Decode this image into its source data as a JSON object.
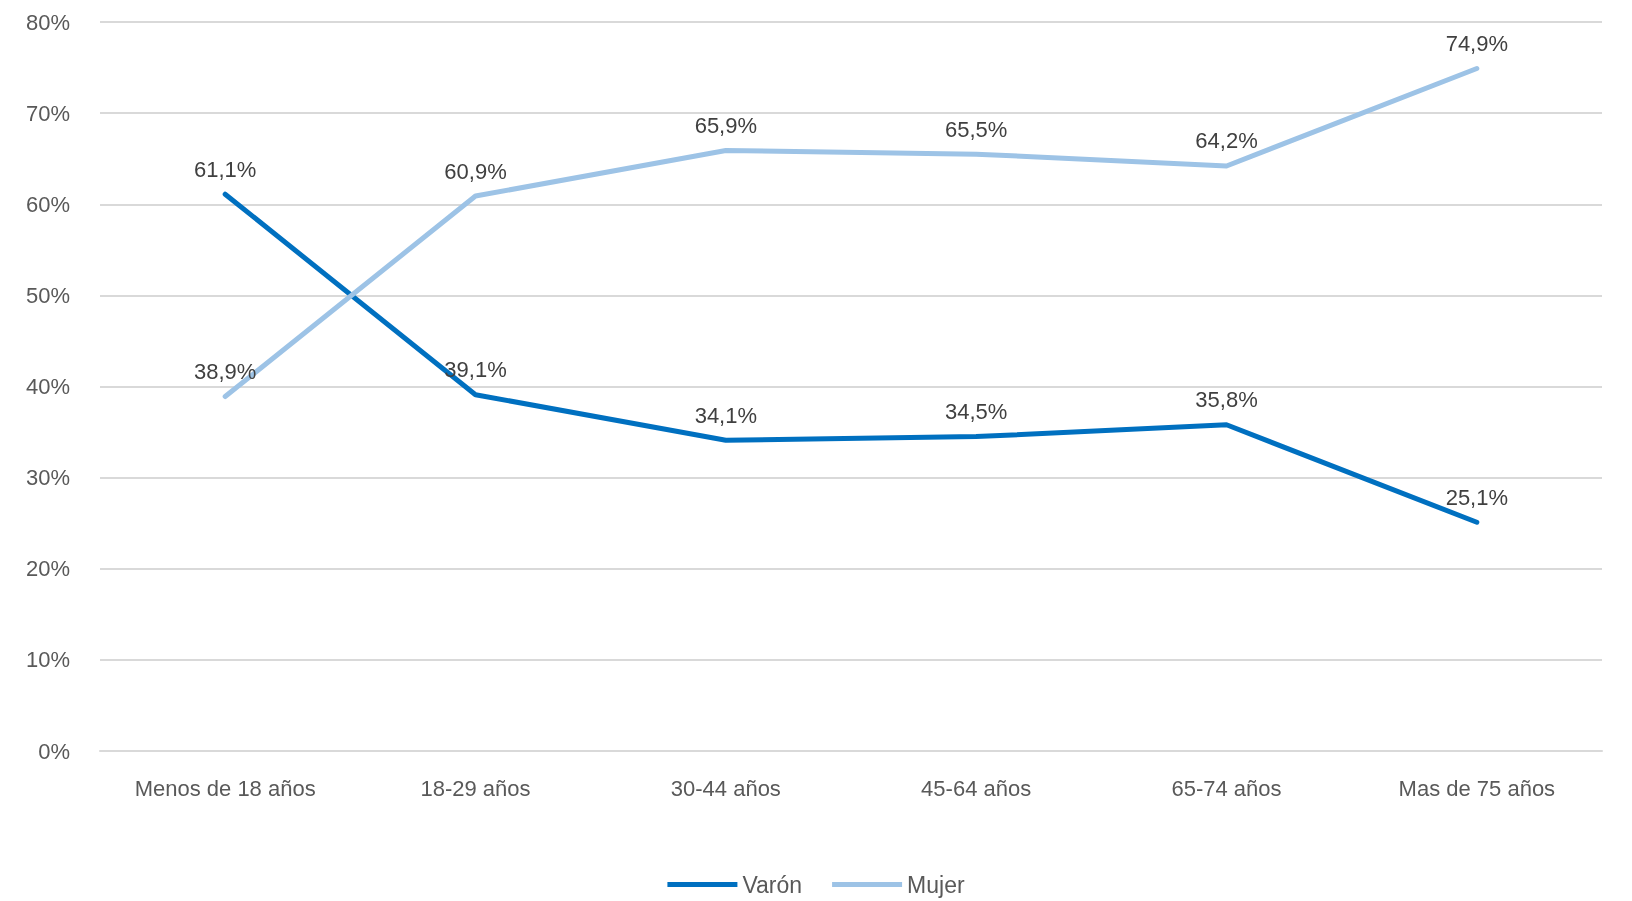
{
  "chart_data": {
    "type": "line",
    "categories": [
      "Menos de 18 años",
      "18-29 años",
      "30-44 años",
      "45-64 años",
      "65-74 años",
      "Mas de 75 años"
    ],
    "series": [
      {
        "name": "Varón",
        "color": "#0070c0",
        "values": [
          61.1,
          39.1,
          34.1,
          34.5,
          35.8,
          25.1
        ],
        "value_labels": [
          "61,1%",
          "39,1%",
          "34,1%",
          "34,5%",
          "35,8%",
          "25,1%"
        ]
      },
      {
        "name": "Mujer",
        "color": "#9dc3e6",
        "values": [
          38.9,
          60.9,
          65.9,
          65.5,
          64.2,
          74.9
        ],
        "value_labels": [
          "38,9%",
          "60,9%",
          "65,9%",
          "65,5%",
          "64,2%",
          "74,9%"
        ]
      }
    ],
    "ylim": [
      0,
      80
    ],
    "yticks": [
      {
        "value": 0,
        "label": "0%"
      },
      {
        "value": 10,
        "label": "10%"
      },
      {
        "value": 20,
        "label": "20%"
      },
      {
        "value": 30,
        "label": "30%"
      },
      {
        "value": 40,
        "label": "40%"
      },
      {
        "value": 50,
        "label": "50%"
      },
      {
        "value": 60,
        "label": "60%"
      },
      {
        "value": 70,
        "label": "70%"
      },
      {
        "value": 80,
        "label": "80%"
      }
    ],
    "grid": "y",
    "legend": "bottom",
    "marker": "none",
    "line_style": "solid"
  }
}
